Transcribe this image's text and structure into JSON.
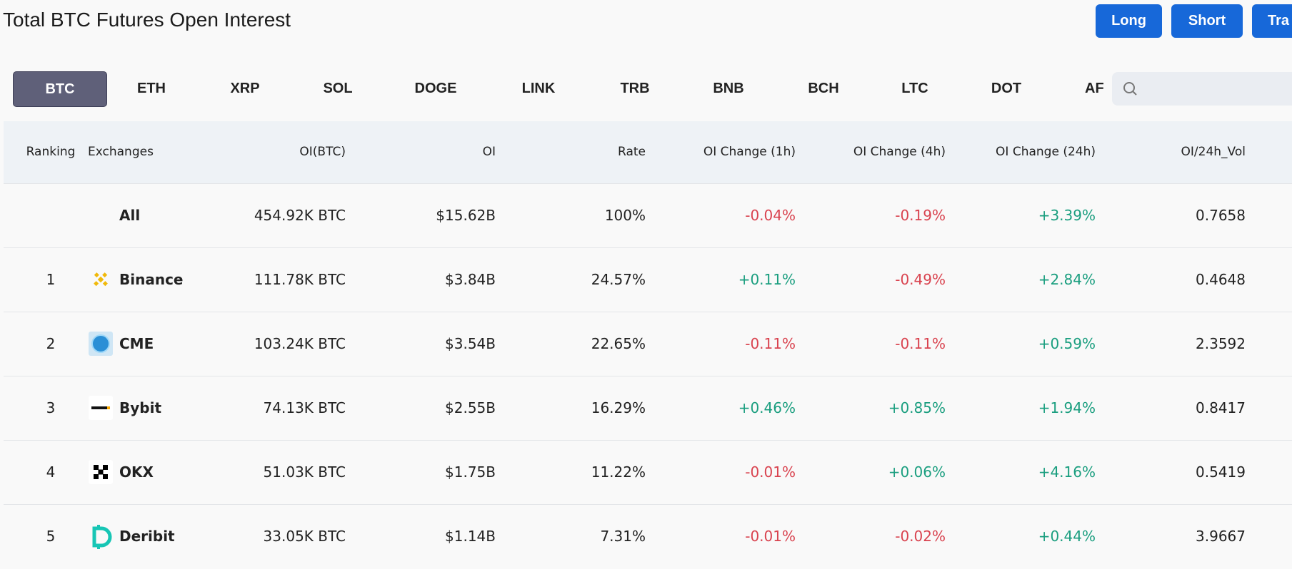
{
  "header": {
    "title": "Total BTC Futures Open Interest",
    "buttons": [
      "Long",
      "Short",
      "Tra"
    ]
  },
  "tabs": [
    "BTC",
    "ETH",
    "XRP",
    "SOL",
    "DOGE",
    "LINK",
    "TRB",
    "BNB",
    "BCH",
    "LTC",
    "DOT",
    "AF"
  ],
  "table": {
    "columns": [
      "Ranking",
      "Exchanges",
      "OI(BTC)",
      "OI",
      "Rate",
      "OI Change (1h)",
      "OI Change (4h)",
      "OI Change (24h)",
      "OI/24h_Vol"
    ],
    "rows": [
      {
        "exchange": "All",
        "values": [
          "454.92K BTC",
          "$15.62B",
          "100%",
          "-0.04%",
          "-0.19%",
          "+3.39%",
          "0.7658"
        ]
      },
      {
        "rank": "1",
        "exchange": "Binance",
        "values": [
          "111.78K BTC",
          "$3.84B",
          "24.57%",
          "+0.11%",
          "-0.49%",
          "+2.84%",
          "0.4648"
        ]
      },
      {
        "rank": "2",
        "exchange": "CME",
        "values": [
          "103.24K BTC",
          "$3.54B",
          "22.65%",
          "-0.11%",
          "-0.11%",
          "+0.59%",
          "2.3592"
        ]
      },
      {
        "rank": "3",
        "exchange": "Bybit",
        "values": [
          "74.13K BTC",
          "$2.55B",
          "16.29%",
          "+0.46%",
          "+0.85%",
          "+1.94%",
          "0.8417"
        ]
      },
      {
        "rank": "4",
        "exchange": "OKX",
        "values": [
          "51.03K BTC",
          "$1.75B",
          "11.22%",
          "-0.01%",
          "+0.06%",
          "+4.16%",
          "0.5419"
        ]
      },
      {
        "rank": "5",
        "exchange": "Deribit",
        "values": [
          "33.05K BTC",
          "$1.14B",
          "7.31%",
          "-0.01%",
          "-0.02%",
          "+0.44%",
          "3.9667"
        ]
      }
    ]
  }
}
